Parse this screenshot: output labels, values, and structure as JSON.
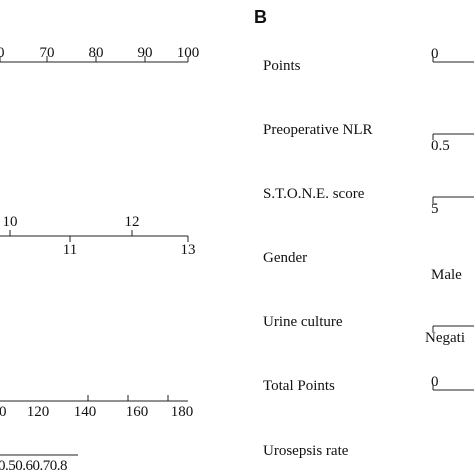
{
  "panel_a": {
    "scale_1": [
      "0",
      "70",
      "80",
      "90",
      "100"
    ],
    "scale_2_top": [
      "10",
      "12"
    ],
    "scale_2_bottom": [
      "11",
      "13"
    ],
    "scale_3": [
      "0",
      "120",
      "140",
      "160",
      "180"
    ],
    "scale_4": "0.50.60.70.8"
  },
  "panel_b": {
    "label": "B",
    "rows": [
      {
        "name": "Points",
        "first_tick": "0"
      },
      {
        "name": "Preoperative NLR",
        "first_tick": "0.5"
      },
      {
        "name": "S.T.O.N.E. score",
        "first_tick": "5"
      },
      {
        "name": "Gender",
        "first_tick": "Male"
      },
      {
        "name": "Urine culture",
        "first_tick": "Negati"
      },
      {
        "name": "Total Points",
        "first_tick": "0"
      },
      {
        "name": "Urosepsis rate"
      }
    ]
  }
}
